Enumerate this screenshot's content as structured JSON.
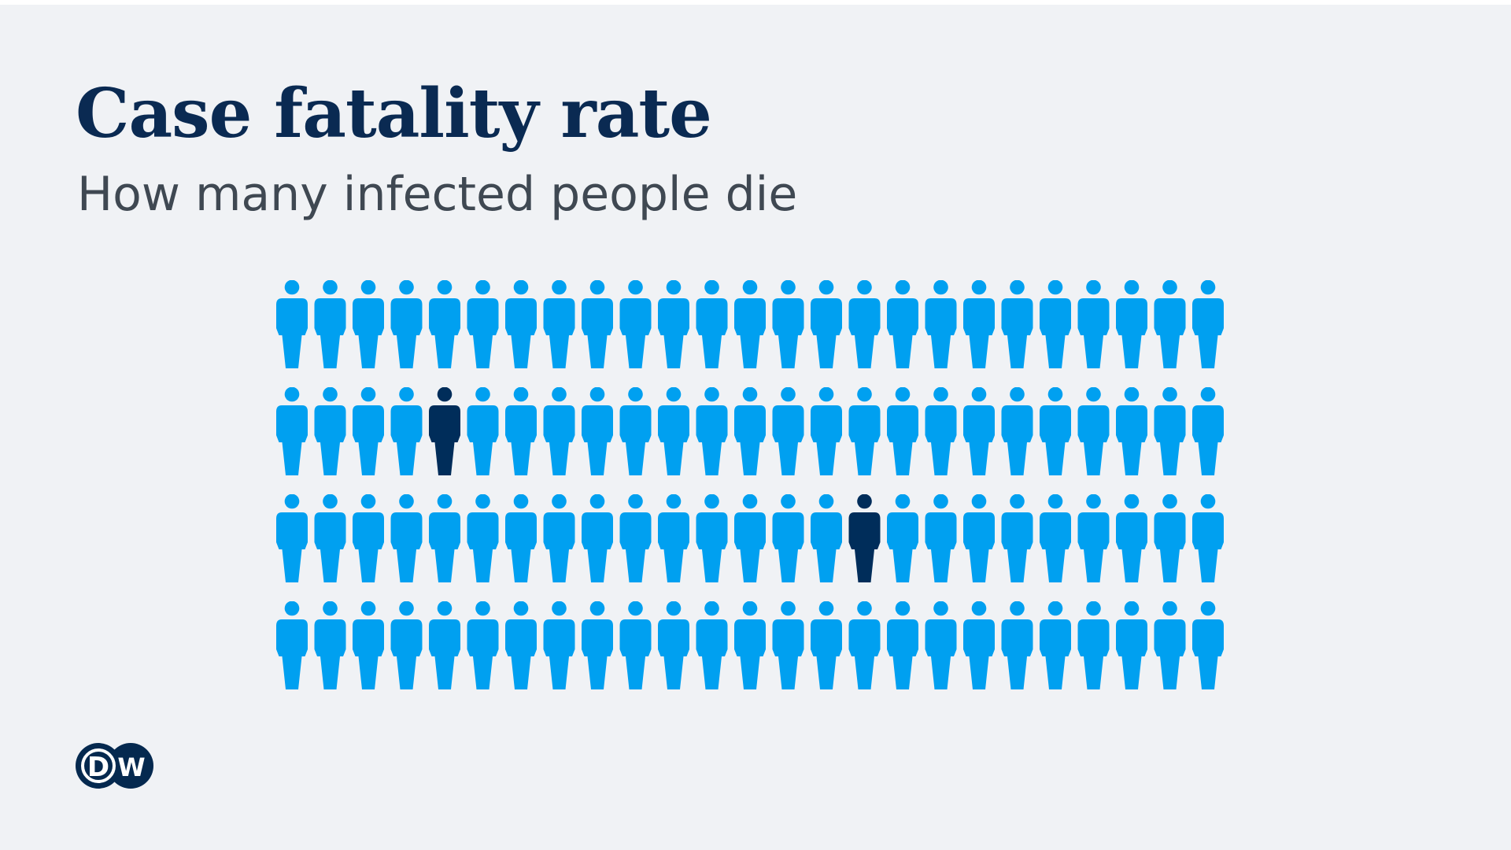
{
  "title": "Case fatality rate",
  "subtitle": "How many infected people die",
  "logo_text": "DW",
  "colors": {
    "background": "#f0f2f5",
    "title": "#0a2a52",
    "subtitle": "#3f4852",
    "survivor": "#00a0f0",
    "death": "#002d5a",
    "logo": "#05294f"
  },
  "chart_data": {
    "type": "pictogram",
    "rows": 4,
    "columns": 25,
    "total": 100,
    "deaths": 2,
    "death_positions": [
      {
        "row": 2,
        "column": 5
      },
      {
        "row": 3,
        "column": 16
      }
    ],
    "icon": "person-icon"
  }
}
